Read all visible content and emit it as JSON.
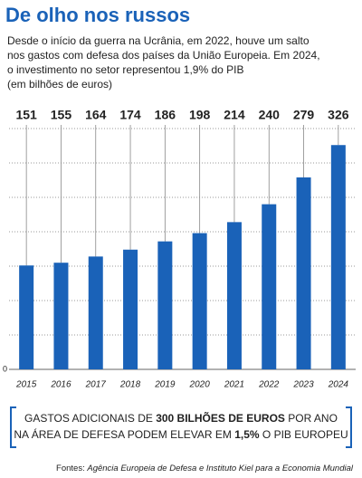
{
  "chart_data": {
    "type": "bar",
    "title": "De olho nos russos",
    "subtitle": [
      "Desde o início da guerra na Ucrânia, em 2022, houve um salto",
      "nos gastos com defesa dos países da União Europeia. Em 2024,",
      "o investimento no setor representou 1,9% do PIB",
      "(em bilhões de euros)"
    ],
    "categories": [
      "2015",
      "2016",
      "2017",
      "2018",
      "2019",
      "2020",
      "2021",
      "2022",
      "2023",
      "2024"
    ],
    "values": [
      151,
      155,
      164,
      174,
      186,
      198,
      214,
      240,
      279,
      326
    ],
    "color": "#1a62b8",
    "ylim": [
      0,
      350
    ],
    "yticks": [
      0
    ],
    "grid_lines": [
      50,
      100,
      150,
      200,
      250,
      300,
      350
    ],
    "grid": true
  },
  "callout": {
    "lines": [
      [
        "GASTOS ADICIONAIS DE ",
        "300 BILHÕES DE EUROS",
        " POR ANO"
      ],
      [
        "NA ÁREA DE DEFESA PODEM ELEVAR EM ",
        "1,5%",
        " O PIB EUROPEU"
      ]
    ]
  },
  "source": [
    "Fontes: ",
    "Agência Europeia de Defesa e Instituto Kiel para a Economia Mundial"
  ]
}
